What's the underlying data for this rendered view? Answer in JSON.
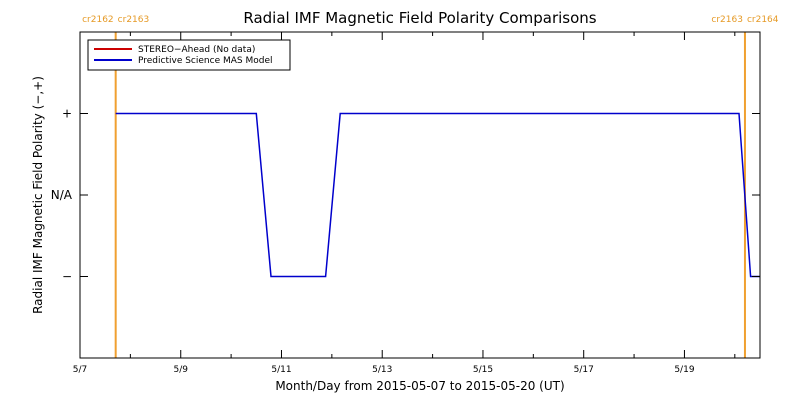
{
  "chart_data": {
    "type": "line",
    "title": "Radial IMF Magnetic Field Polarity Comparisons",
    "xlabel": "Month/Day from 2015-05-07 to 2015-05-20 (UT)",
    "ylabel": "Radial IMF Magnetic Field Polarity (−,+)",
    "xlim": [
      "2015-05-07T00:00",
      "2015-05-20T12:00"
    ],
    "ylim": [
      -2,
      2
    ],
    "x_ticks": [
      {
        "x": "2015-05-07",
        "label": "5/7"
      },
      {
        "x": "2015-05-09",
        "label": "5/9"
      },
      {
        "x": "2015-05-11",
        "label": "5/11"
      },
      {
        "x": "2015-05-13",
        "label": "5/13"
      },
      {
        "x": "2015-05-15",
        "label": "5/15"
      },
      {
        "x": "2015-05-17",
        "label": "5/17"
      },
      {
        "x": "2015-05-19",
        "label": "5/19"
      }
    ],
    "y_ticks": [
      {
        "y": 1,
        "label": "+"
      },
      {
        "y": 0,
        "label": "N/A"
      },
      {
        "y": -1,
        "label": "−"
      }
    ],
    "legend": {
      "placement": "top-left",
      "entries": [
        {
          "label": "STEREO−Ahead (No data)",
          "color": "#cc0000"
        },
        {
          "label": "Predictive Science MAS Model",
          "color": "#0000cc"
        }
      ]
    },
    "carrington_boundaries": [
      {
        "x": "2015-05-07T17:00",
        "left_label": "cr2162",
        "right_label": "cr2163"
      },
      {
        "x": "2015-05-20T04:50",
        "left_label": "cr2163",
        "right_label": "cr2164"
      }
    ],
    "series": [
      {
        "name": "Predictive Science MAS Model",
        "color": "#0000cc",
        "points": [
          [
            "2015-05-07T17:00",
            1
          ],
          [
            "2015-05-10T12:00",
            1
          ],
          [
            "2015-05-10T19:00",
            -1
          ],
          [
            "2015-05-11T21:00",
            -1
          ],
          [
            "2015-05-12T04:00",
            1
          ],
          [
            "2015-05-20T02:00",
            1
          ],
          [
            "2015-05-20T07:30",
            -1
          ],
          [
            "2015-05-20T12:00",
            -1
          ]
        ]
      },
      {
        "name": "STEREO−Ahead (No data)",
        "color": "#cc0000",
        "points": []
      }
    ],
    "colors": {
      "boundary": "#f0a030",
      "frame": "#000000"
    }
  }
}
